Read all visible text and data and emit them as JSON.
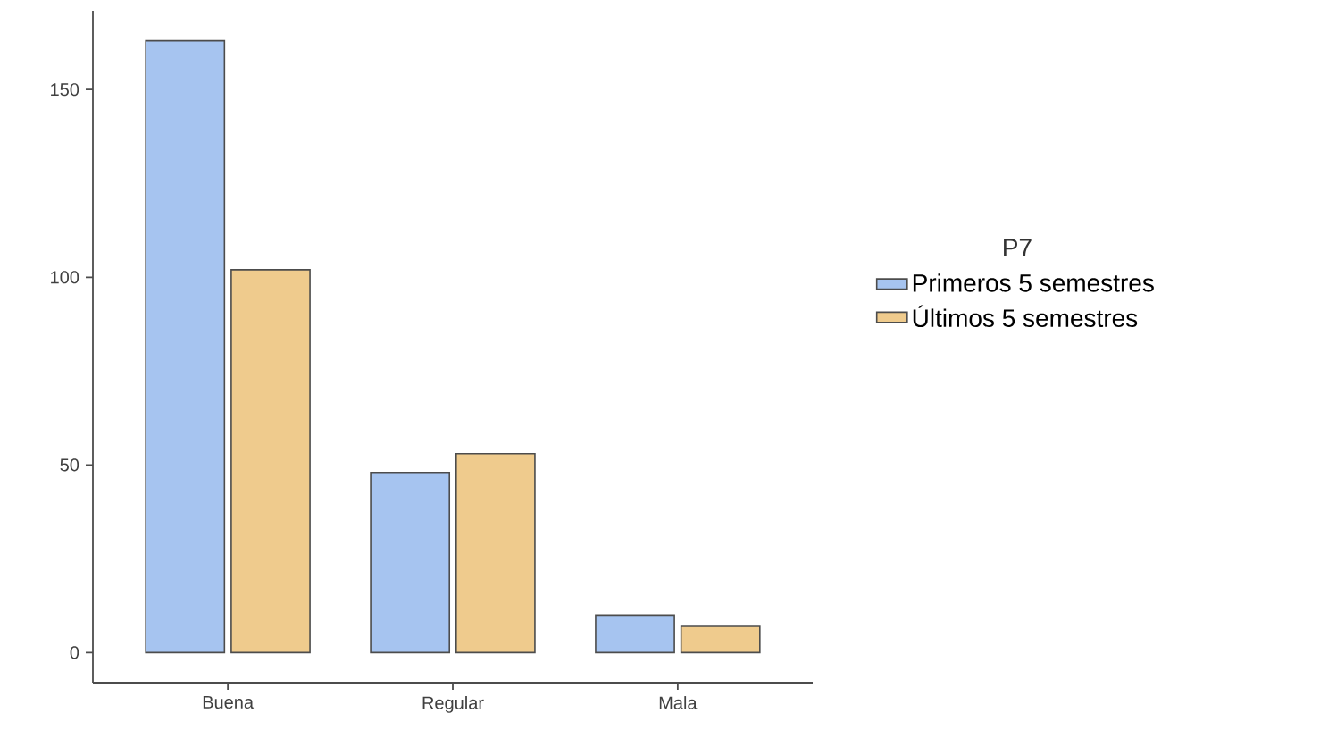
{
  "chart_data": {
    "type": "bar",
    "categories": [
      "Buena",
      "Regular",
      "Mala"
    ],
    "series": [
      {
        "name": "Primeros 5 semestres",
        "color": "#a6c4f0",
        "values": [
          163,
          48,
          10
        ]
      },
      {
        "name": "Últimos 5 semestres",
        "color": "#efcb8d",
        "values": [
          102,
          53,
          7
        ]
      }
    ],
    "ylim": [
      -8,
      171
    ],
    "yticks": [
      0,
      50,
      100,
      150
    ],
    "legend_title": "P7",
    "legend": "right",
    "grid": false
  }
}
